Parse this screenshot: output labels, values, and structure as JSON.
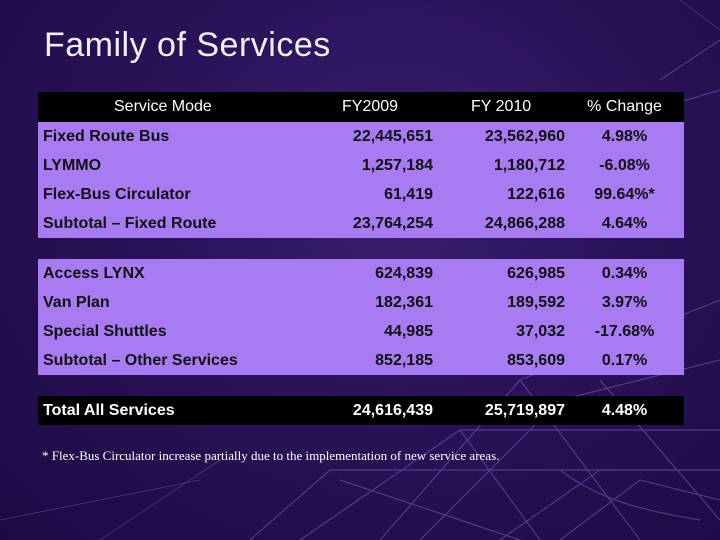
{
  "title": "Family of Services",
  "table": {
    "headers": [
      "Service Mode",
      "FY2009",
      "FY 2010",
      "% Change"
    ],
    "group1": [
      [
        "Fixed Route Bus",
        "22,445,651",
        "23,562,960",
        "4.98%"
      ],
      [
        "LYMMO",
        "1,257,184",
        "1,180,712",
        "-6.08%"
      ],
      [
        "Flex-Bus Circulator",
        "61,419",
        "122,616",
        "99.64%*"
      ],
      [
        "Subtotal – Fixed Route",
        "23,764,254",
        "24,866,288",
        "4.64%"
      ]
    ],
    "group2": [
      [
        "Access LYNX",
        "624,839",
        "626,985",
        "0.34%"
      ],
      [
        "Van Plan",
        "182,361",
        "189,592",
        "3.97%"
      ],
      [
        "Special Shuttles",
        "44,985",
        "37,032",
        "-17.68%"
      ],
      [
        "Subtotal – Other Services",
        "852,185",
        "853,609",
        "0.17%"
      ]
    ],
    "total": [
      "Total All Services",
      "24,616,439",
      "25,719,897",
      "4.48%"
    ]
  },
  "footnote": "* Flex-Bus Circulator increase partially due to the implementation of new service areas."
}
